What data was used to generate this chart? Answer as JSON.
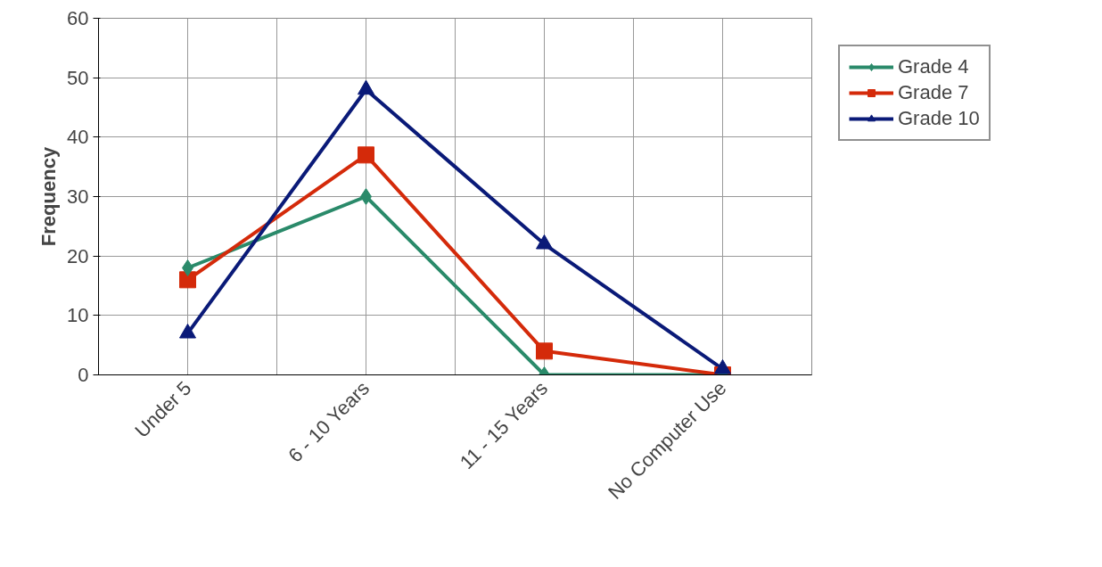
{
  "chart_data": {
    "type": "line",
    "ylabel": "Frequency",
    "categories": [
      "Under 5",
      "6 - 10 Years",
      "11 - 15 Years",
      "No Computer Use"
    ],
    "series": [
      {
        "name": "Grade 4",
        "color": "#2a8a6a",
        "marker": "diamond",
        "values": [
          18,
          30,
          0,
          0
        ]
      },
      {
        "name": "Grade 7",
        "color": "#d42a0a",
        "marker": "square",
        "values": [
          16,
          37,
          4,
          0
        ]
      },
      {
        "name": "Grade 10",
        "color": "#0a1a78",
        "marker": "triangle",
        "values": [
          7,
          48,
          22,
          1
        ]
      }
    ],
    "ylim": [
      0,
      60
    ],
    "yticks": [
      0,
      10,
      20,
      30,
      40,
      50,
      60
    ],
    "grid": true,
    "legend": "right"
  }
}
